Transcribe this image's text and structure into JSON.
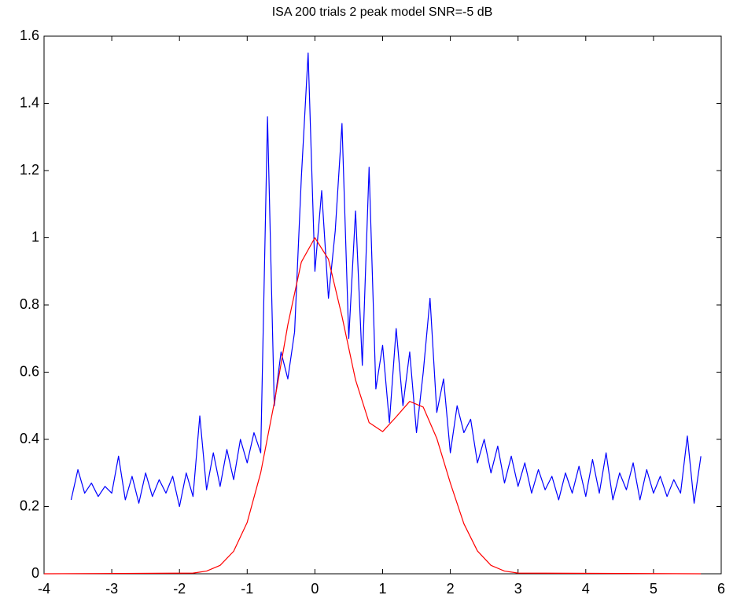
{
  "chart_data": {
    "type": "line",
    "title": "ISA 200 trials 2 peak model SNR=-5 dB",
    "xlim": [
      -4,
      6
    ],
    "xticks": [
      -4,
      -3,
      -2,
      -1,
      0,
      1,
      2,
      3,
      4,
      5,
      6
    ],
    "ylim": [
      0,
      1.6
    ],
    "yticks": [
      0,
      0.2,
      0.4,
      0.6,
      0.8,
      1,
      1.2,
      1.4,
      1.6
    ],
    "grid": false,
    "series": [
      {
        "color": "#0000ff",
        "x": [
          -3.6,
          -3.5,
          -3.4,
          -3.3,
          -3.2,
          -3.1,
          -3.0,
          -2.9,
          -2.8,
          -2.7,
          -2.6,
          -2.5,
          -2.4,
          -2.3,
          -2.2,
          -2.1,
          -2.0,
          -1.9,
          -1.8,
          -1.7,
          -1.6,
          -1.5,
          -1.4,
          -1.3,
          -1.2,
          -1.1,
          -1.0,
          -0.9,
          -0.8,
          -0.7,
          -0.6,
          -0.5,
          -0.4,
          -0.3,
          -0.2,
          -0.1,
          0.0,
          0.1,
          0.2,
          0.3,
          0.4,
          0.5,
          0.6,
          0.7,
          0.8,
          0.9,
          1.0,
          1.1,
          1.2,
          1.3,
          1.4,
          1.5,
          1.6,
          1.7,
          1.8,
          1.9,
          2.0,
          2.1,
          2.2,
          2.3,
          2.4,
          2.5,
          2.6,
          2.7,
          2.8,
          2.9,
          3.0,
          3.1,
          3.2,
          3.3,
          3.4,
          3.5,
          3.6,
          3.7,
          3.8,
          3.9,
          4.0,
          4.1,
          4.2,
          4.3,
          4.4,
          4.5,
          4.6,
          4.7,
          4.8,
          4.9,
          5.0,
          5.1,
          5.2,
          5.3,
          5.4,
          5.5,
          5.6,
          5.7
        ],
        "values": [
          0.22,
          0.31,
          0.24,
          0.27,
          0.23,
          0.26,
          0.24,
          0.35,
          0.22,
          0.29,
          0.21,
          0.3,
          0.23,
          0.28,
          0.24,
          0.29,
          0.2,
          0.3,
          0.23,
          0.47,
          0.25,
          0.36,
          0.26,
          0.37,
          0.28,
          0.4,
          0.33,
          0.42,
          0.36,
          1.36,
          0.5,
          0.66,
          0.58,
          0.72,
          1.18,
          1.55,
          0.9,
          1.14,
          0.82,
          1.02,
          1.34,
          0.7,
          1.08,
          0.62,
          1.21,
          0.55,
          0.68,
          0.45,
          0.73,
          0.5,
          0.66,
          0.42,
          0.6,
          0.82,
          0.48,
          0.58,
          0.36,
          0.5,
          0.42,
          0.46,
          0.33,
          0.4,
          0.3,
          0.38,
          0.27,
          0.35,
          0.26,
          0.33,
          0.24,
          0.31,
          0.25,
          0.29,
          0.22,
          0.3,
          0.24,
          0.32,
          0.23,
          0.34,
          0.24,
          0.36,
          0.22,
          0.3,
          0.25,
          0.33,
          0.22,
          0.31,
          0.24,
          0.29,
          0.23,
          0.28,
          0.24,
          0.41,
          0.21,
          0.35
        ]
      },
      {
        "color": "#ff0000",
        "x": [
          -4,
          -1.8,
          -1.6,
          -1.4,
          -1.2,
          -1.0,
          -0.8,
          -0.6,
          -0.4,
          -0.2,
          0,
          0.2,
          0.4,
          0.6,
          0.8,
          1.0,
          1.2,
          1.4,
          1.6,
          1.8,
          2.0,
          2.2,
          2.4,
          2.6,
          2.8,
          3.0,
          5.7
        ],
        "values": [
          0,
          0.002,
          0.008,
          0.025,
          0.067,
          0.153,
          0.301,
          0.509,
          0.741,
          0.928,
          1.0,
          0.936,
          0.766,
          0.577,
          0.45,
          0.423,
          0.467,
          0.513,
          0.496,
          0.403,
          0.27,
          0.149,
          0.068,
          0.025,
          0.008,
          0.002,
          0
        ]
      }
    ]
  }
}
